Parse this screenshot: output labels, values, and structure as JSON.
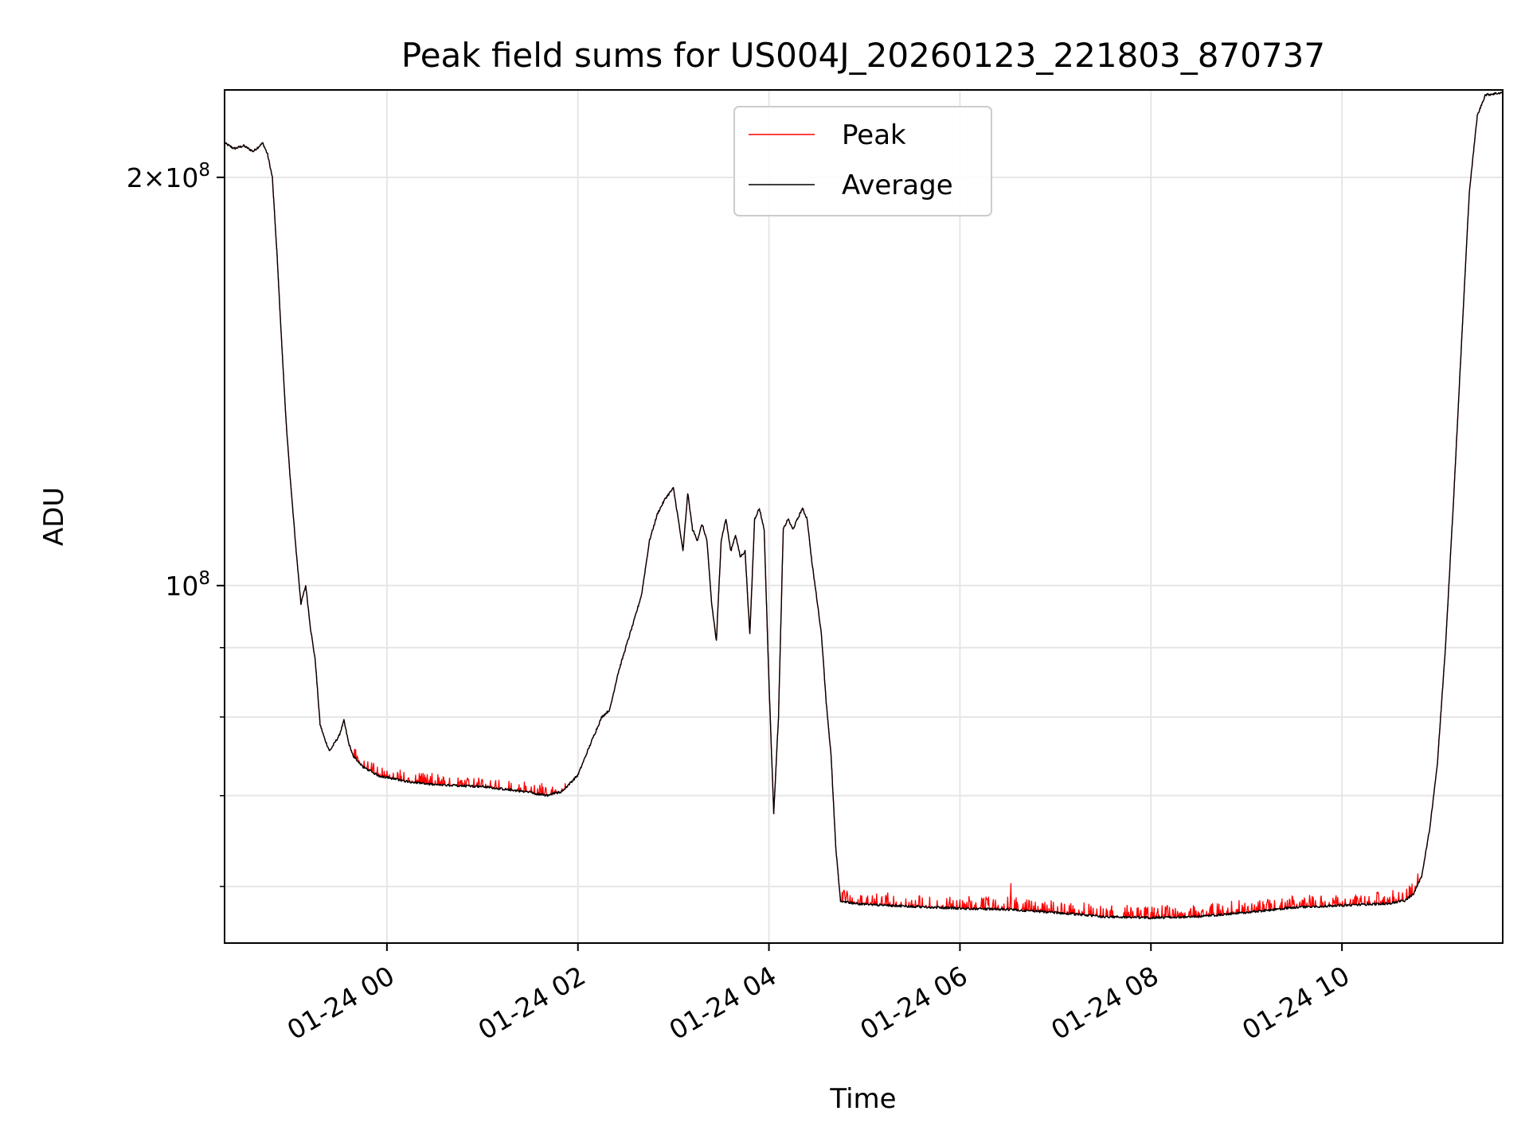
{
  "chart_data": {
    "type": "line",
    "title": "Peak field sums for US004J_20260123_221803_870737",
    "xlabel": "Time",
    "ylabel": "ADU",
    "x_axis": {
      "kind": "datetime",
      "range": [
        "2026-01-23 22:18",
        "2026-01-24 11:41"
      ],
      "ticks": [
        {
          "t": "2026-01-24 00:00",
          "label": "01-24 00"
        },
        {
          "t": "2026-01-24 02:00",
          "label": "01-24 02"
        },
        {
          "t": "2026-01-24 04:00",
          "label": "01-24 04"
        },
        {
          "t": "2026-01-24 06:00",
          "label": "01-24 06"
        },
        {
          "t": "2026-01-24 08:00",
          "label": "01-24 08"
        },
        {
          "t": "2026-01-24 10:00",
          "label": "01-24 10"
        }
      ]
    },
    "y_axis": {
      "scale": "log",
      "range": [
        54500000,
        232000000
      ],
      "major_ticks": [
        {
          "value": 100000000,
          "base": "10",
          "exp": "8"
        },
        {
          "value": 200000000,
          "mantissa": "2",
          "base": "10",
          "exp": "8"
        }
      ],
      "minor_ticks": [
        60000000,
        70000000,
        80000000,
        90000000
      ]
    },
    "grid": true,
    "legend": {
      "position": "upper center",
      "entries": [
        "Peak",
        "Average"
      ]
    },
    "series": [
      {
        "name": "Average",
        "color": "#000000",
        "points": [
          [
            "2026-01-23 22:18",
            212000000
          ],
          [
            "2026-01-23 22:24",
            210000000
          ],
          [
            "2026-01-23 22:30",
            211000000
          ],
          [
            "2026-01-23 22:36",
            209000000
          ],
          [
            "2026-01-23 22:42",
            212000000
          ],
          [
            "2026-01-23 22:45",
            208000000
          ],
          [
            "2026-01-23 22:48",
            200000000
          ],
          [
            "2026-01-23 22:51",
            175000000
          ],
          [
            "2026-01-23 22:54",
            150000000
          ],
          [
            "2026-01-23 22:57",
            130000000
          ],
          [
            "2026-01-23 23:00",
            117000000
          ],
          [
            "2026-01-23 23:03",
            106000000
          ],
          [
            "2026-01-23 23:06",
            97000000
          ],
          [
            "2026-01-23 23:09",
            100000000
          ],
          [
            "2026-01-23 23:12",
            93000000
          ],
          [
            "2026-01-23 23:15",
            88000000
          ],
          [
            "2026-01-23 23:18",
            79000000
          ],
          [
            "2026-01-23 23:21",
            77000000
          ],
          [
            "2026-01-23 23:24",
            75500000
          ],
          [
            "2026-01-23 23:27",
            76500000
          ],
          [
            "2026-01-23 23:30",
            77500000
          ],
          [
            "2026-01-23 23:33",
            79500000
          ],
          [
            "2026-01-23 23:36",
            76500000
          ],
          [
            "2026-01-23 23:39",
            74800000
          ],
          [
            "2026-01-23 23:45",
            73500000
          ],
          [
            "2026-01-23 23:55",
            72400000
          ],
          [
            "2026-01-24 00:10",
            71800000
          ],
          [
            "2026-01-24 00:30",
            71300000
          ],
          [
            "2026-01-24 01:00",
            71100000
          ],
          [
            "2026-01-24 01:30",
            70400000
          ],
          [
            "2026-01-24 01:40",
            70000000
          ],
          [
            "2026-01-24 01:50",
            70500000
          ],
          [
            "2026-01-24 02:00",
            72500000
          ],
          [
            "2026-01-24 02:10",
            77500000
          ],
          [
            "2026-01-24 02:15",
            80000000
          ],
          [
            "2026-01-24 02:20",
            81000000
          ],
          [
            "2026-01-24 02:25",
            86000000
          ],
          [
            "2026-01-24 02:30",
            90000000
          ],
          [
            "2026-01-24 02:35",
            94000000
          ],
          [
            "2026-01-24 02:40",
            98500000
          ],
          [
            "2026-01-24 02:45",
            108000000
          ],
          [
            "2026-01-24 02:50",
            113000000
          ],
          [
            "2026-01-24 02:55",
            116000000
          ],
          [
            "2026-01-24 03:00",
            118000000
          ],
          [
            "2026-01-24 03:03",
            112000000
          ],
          [
            "2026-01-24 03:06",
            106000000
          ],
          [
            "2026-01-24 03:09",
            117000000
          ],
          [
            "2026-01-24 03:12",
            110000000
          ],
          [
            "2026-01-24 03:15",
            108000000
          ],
          [
            "2026-01-24 03:18",
            111000000
          ],
          [
            "2026-01-24 03:21",
            108000000
          ],
          [
            "2026-01-24 03:24",
            97000000
          ],
          [
            "2026-01-24 03:27",
            91000000
          ],
          [
            "2026-01-24 03:30",
            108000000
          ],
          [
            "2026-01-24 03:33",
            112000000
          ],
          [
            "2026-01-24 03:36",
            106000000
          ],
          [
            "2026-01-24 03:39",
            109000000
          ],
          [
            "2026-01-24 03:42",
            105000000
          ],
          [
            "2026-01-24 03:45",
            106000000
          ],
          [
            "2026-01-24 03:48",
            92000000
          ],
          [
            "2026-01-24 03:51",
            112000000
          ],
          [
            "2026-01-24 03:54",
            114000000
          ],
          [
            "2026-01-24 03:57",
            110000000
          ],
          [
            "2026-01-24 04:00",
            85000000
          ],
          [
            "2026-01-24 04:03",
            68000000
          ],
          [
            "2026-01-24 04:06",
            80000000
          ],
          [
            "2026-01-24 04:09",
            110000000
          ],
          [
            "2026-01-24 04:12",
            112000000
          ],
          [
            "2026-01-24 04:15",
            110000000
          ],
          [
            "2026-01-24 04:18",
            112000000
          ],
          [
            "2026-01-24 04:21",
            114000000
          ],
          [
            "2026-01-24 04:24",
            112000000
          ],
          [
            "2026-01-24 04:27",
            104000000
          ],
          [
            "2026-01-24 04:30",
            98000000
          ],
          [
            "2026-01-24 04:33",
            92000000
          ],
          [
            "2026-01-24 04:36",
            82000000
          ],
          [
            "2026-01-24 04:39",
            75000000
          ],
          [
            "2026-01-24 04:42",
            64000000
          ],
          [
            "2026-01-24 04:45",
            58500000
          ],
          [
            "2026-01-24 05:00",
            58200000
          ],
          [
            "2026-01-24 05:30",
            58000000
          ],
          [
            "2026-01-24 06:00",
            57800000
          ],
          [
            "2026-01-24 06:30",
            57700000
          ],
          [
            "2026-01-24 07:00",
            57400000
          ],
          [
            "2026-01-24 07:30",
            57000000
          ],
          [
            "2026-01-24 08:00",
            56900000
          ],
          [
            "2026-01-24 08:30",
            57000000
          ],
          [
            "2026-01-24 09:00",
            57400000
          ],
          [
            "2026-01-24 09:30",
            57900000
          ],
          [
            "2026-01-24 10:00",
            58100000
          ],
          [
            "2026-01-24 10:30",
            58300000
          ],
          [
            "2026-01-24 10:40",
            58600000
          ],
          [
            "2026-01-24 10:45",
            59300000
          ],
          [
            "2026-01-24 10:50",
            61000000
          ],
          [
            "2026-01-24 10:55",
            66000000
          ],
          [
            "2026-01-24 11:00",
            74000000
          ],
          [
            "2026-01-24 11:05",
            90000000
          ],
          [
            "2026-01-24 11:10",
            115000000
          ],
          [
            "2026-01-24 11:15",
            150000000
          ],
          [
            "2026-01-24 11:20",
            195000000
          ],
          [
            "2026-01-24 11:25",
            222000000
          ],
          [
            "2026-01-24 11:30",
            230000000
          ],
          [
            "2026-01-24 11:41",
            231000000
          ]
        ]
      },
      {
        "name": "Peak",
        "color": "#ff0000",
        "note_style": "tracks Average with frequent small upward spikes (about 1-2%) over the low-level segments",
        "spike_windows": [
          {
            "from": "2026-01-23 23:38",
            "to": "2026-01-24 01:52",
            "amplitude": 0.018
          },
          {
            "from": "2026-01-24 04:46",
            "to": "2026-01-24 10:48",
            "amplitude": 0.02
          }
        ],
        "notable_spike": {
          "t": "2026-01-24 06:32",
          "value": 60300000
        }
      }
    ]
  }
}
